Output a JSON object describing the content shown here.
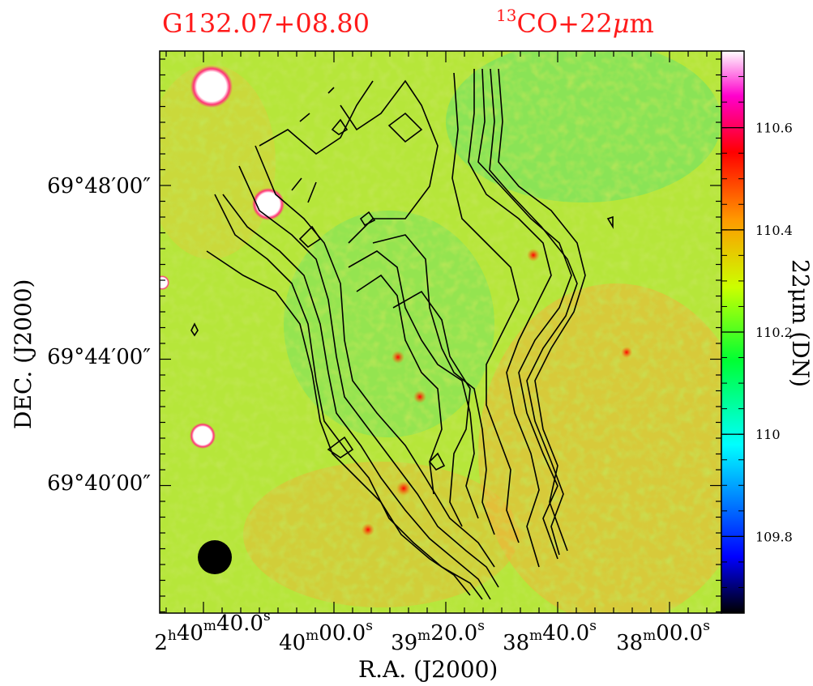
{
  "chart_data": {
    "type": "heatmap",
    "title_left": "G132.07+08.80",
    "title_right_sup": "13",
    "title_right": "CO+22",
    "title_right_mu": "μ",
    "title_right_unit": "m",
    "xlabel": "R.A. (J2000)",
    "ylabel": "DEC. (J2000)",
    "colorbar_label": "22μm (DN)",
    "colorbar_ticks": [
      110.6,
      110.4,
      110.2,
      110,
      109.8
    ],
    "colorbar_range": [
      109.65,
      110.75
    ],
    "x_ticks": [
      {
        "h": "2",
        "hu": "h",
        "m": "40",
        "mu": "m",
        "s": "40.0",
        "su": "s"
      },
      {
        "h": "",
        "hu": "",
        "m": "40",
        "mu": "m",
        "s": "00.0",
        "su": "s"
      },
      {
        "h": "",
        "hu": "",
        "m": "39",
        "mu": "m",
        "s": "20.0",
        "su": "s"
      },
      {
        "h": "",
        "hu": "",
        "m": "38",
        "mu": "m",
        "s": "40.0",
        "su": "s"
      },
      {
        "h": "",
        "hu": "",
        "m": "38",
        "mu": "m",
        "s": "00.0",
        "su": "s"
      }
    ],
    "y_ticks": [
      "69°48′00″",
      "69°44′00″",
      "69°40′00″"
    ],
    "colors": {
      "title": "#ff1a1a",
      "background": "#bfe840",
      "colormap": [
        "#000000",
        "#0000ff",
        "#00ffff",
        "#00ff00",
        "#ffff00",
        "#ff8c00",
        "#ff0000",
        "#ff00ff",
        "#ffffff"
      ]
    },
    "beam": "filled-black-circle"
  }
}
